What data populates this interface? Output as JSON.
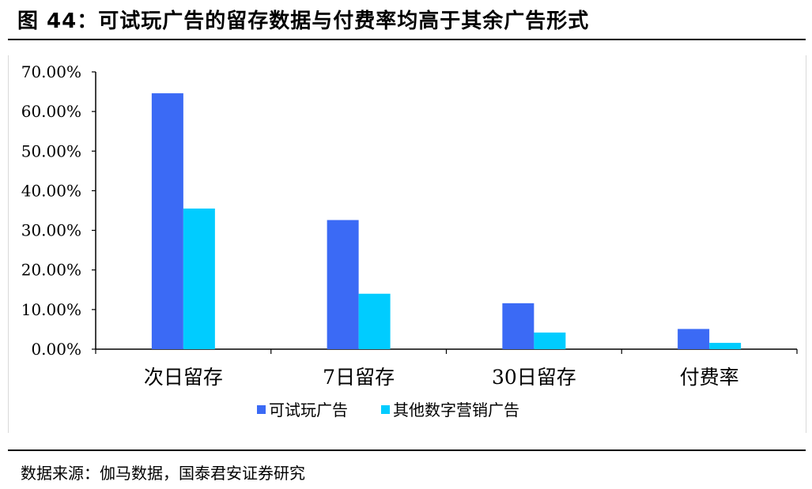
{
  "figure": {
    "title": "图 44：可试玩广告的留存数据与付费率均高于其余广告形式",
    "source": "数据来源：伽马数据，国泰君安证券研究"
  },
  "colors": {
    "series1": "#3b6af5",
    "series2": "#00ccff",
    "axis": "#000000"
  },
  "chart_data": {
    "type": "bar",
    "categories": [
      "次日留存",
      "7日留存",
      "30日留存",
      "付费率"
    ],
    "series": [
      {
        "name": "可试玩广告",
        "values": [
          64.6,
          32.6,
          11.6,
          5.1
        ]
      },
      {
        "name": "其他数字营销广告",
        "values": [
          35.5,
          14.0,
          4.2,
          1.6
        ]
      }
    ],
    "yticks": [
      "0.00%",
      "10.00%",
      "20.00%",
      "30.00%",
      "40.00%",
      "50.00%",
      "60.00%",
      "70.00%"
    ],
    "ylim": [
      0,
      70
    ],
    "grid": false,
    "legend": "bottom"
  }
}
